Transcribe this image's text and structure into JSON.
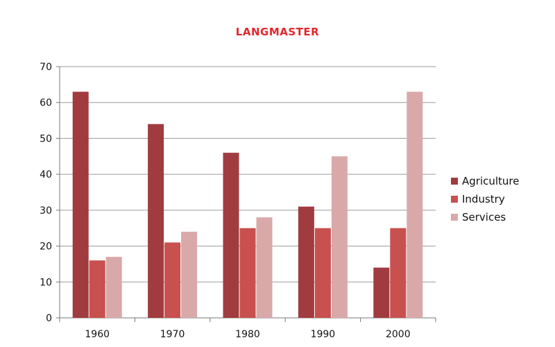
{
  "brand": {
    "text": "LANGMASTER",
    "color": "#e3262b"
  },
  "chart_data": {
    "type": "bar",
    "title": "",
    "xlabel": "",
    "ylabel": "",
    "categories": [
      "1960",
      "1970",
      "1980",
      "1990",
      "2000"
    ],
    "series": [
      {
        "name": "Agriculture",
        "color": "#a03c3f",
        "values": [
          63,
          54,
          46,
          31,
          14
        ]
      },
      {
        "name": "Industry",
        "color": "#c8504f",
        "values": [
          16,
          21,
          25,
          25,
          25
        ]
      },
      {
        "name": "Services",
        "color": "#d9a9a9",
        "values": [
          17,
          24,
          28,
          45,
          63
        ]
      }
    ],
    "ylim": [
      0,
      70
    ],
    "yticks": [
      0,
      10,
      20,
      30,
      40,
      50,
      60,
      70
    ],
    "grid": true,
    "legend": "right"
  }
}
